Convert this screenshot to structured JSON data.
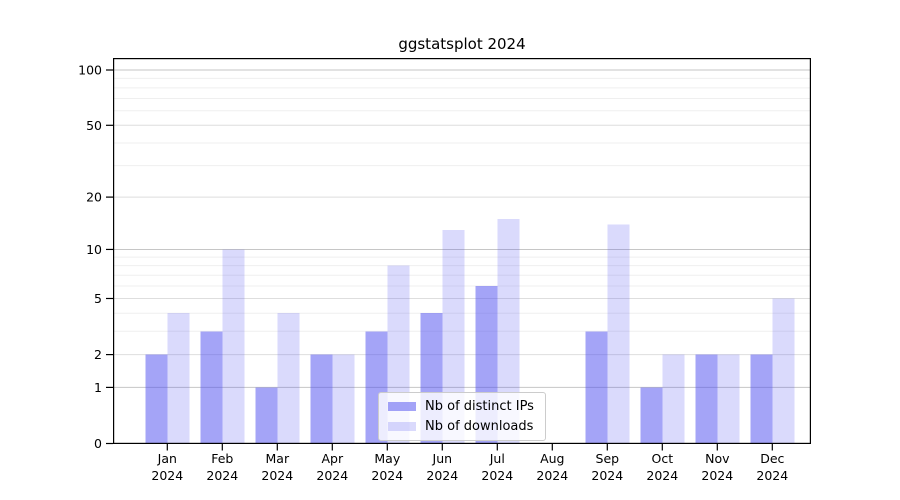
{
  "title": "ggstatsplot 2024",
  "chart_data": {
    "type": "bar",
    "title": "ggstatsplot 2024",
    "categories": [
      "Jan",
      "Feb",
      "Mar",
      "Apr",
      "May",
      "Jun",
      "Jul",
      "Aug",
      "Sep",
      "Oct",
      "Nov",
      "Dec"
    ],
    "category_year": "2024",
    "series": [
      {
        "name": "Nb of distinct IPs",
        "color": "#5050f0",
        "alpha": 0.52,
        "values": [
          2,
          3,
          1,
          2,
          3,
          4,
          6,
          0,
          3,
          1,
          2,
          2
        ]
      },
      {
        "name": "Nb of downloads",
        "color": "#5050f0",
        "alpha": 0.21,
        "values": [
          4,
          10,
          4,
          2,
          8,
          13,
          15,
          0,
          14,
          2,
          2,
          5
        ]
      }
    ],
    "xlabel": "",
    "ylabel": "",
    "y_axis": {
      "scale": "log1p",
      "ticks": [
        0,
        1,
        2,
        5,
        10,
        20,
        50,
        100
      ],
      "minor_gridlines": [
        3,
        4,
        6,
        7,
        8,
        9,
        30,
        40,
        60,
        70,
        80,
        90
      ],
      "ylim": [
        0,
        117
      ]
    },
    "grid": true,
    "legend_position": "lower center-left inside plot",
    "colors": {
      "major_decade_gridline": "#c6c6c6",
      "major_gridline": "#dedede",
      "minor_gridline": "#efefef",
      "frame": "#000000",
      "text": "#000000"
    }
  }
}
